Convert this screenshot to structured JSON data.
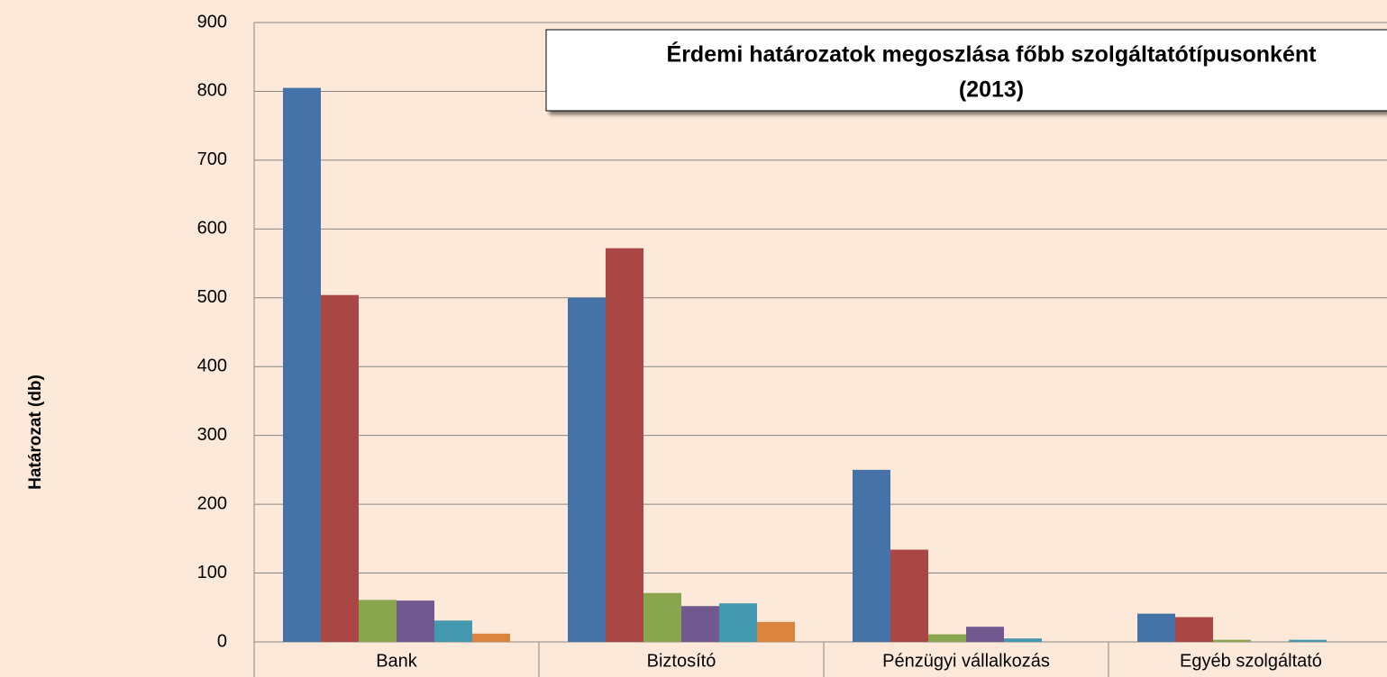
{
  "chart_data": {
    "type": "bar",
    "title": "Érdemi határozatok megoszlása főbb szolgáltatótípusonként",
    "subtitle": "(2013)",
    "y_label": "Határozat (db)",
    "categories": [
      "Bank",
      "Biztosító",
      "Pénzügyi vállalkozás",
      "Egyéb szolgáltató"
    ],
    "series": [
      {
        "color": "#4572a7",
        "values": [
          805,
          500,
          250,
          41
        ]
      },
      {
        "color": "#aa4643",
        "values": [
          504,
          572,
          134,
          36
        ]
      },
      {
        "color": "#89a54e",
        "values": [
          61,
          71,
          11,
          3
        ]
      },
      {
        "color": "#71588f",
        "values": [
          60,
          52,
          22,
          0
        ]
      },
      {
        "color": "#4198af",
        "values": [
          31,
          56,
          5,
          3
        ]
      },
      {
        "color": "#db843d",
        "values": [
          12,
          29,
          0,
          0
        ]
      }
    ],
    "ylim": [
      0,
      900
    ],
    "yticks": [
      0,
      100,
      200,
      300,
      400,
      500,
      600,
      700,
      800,
      900
    ],
    "grid": true
  }
}
